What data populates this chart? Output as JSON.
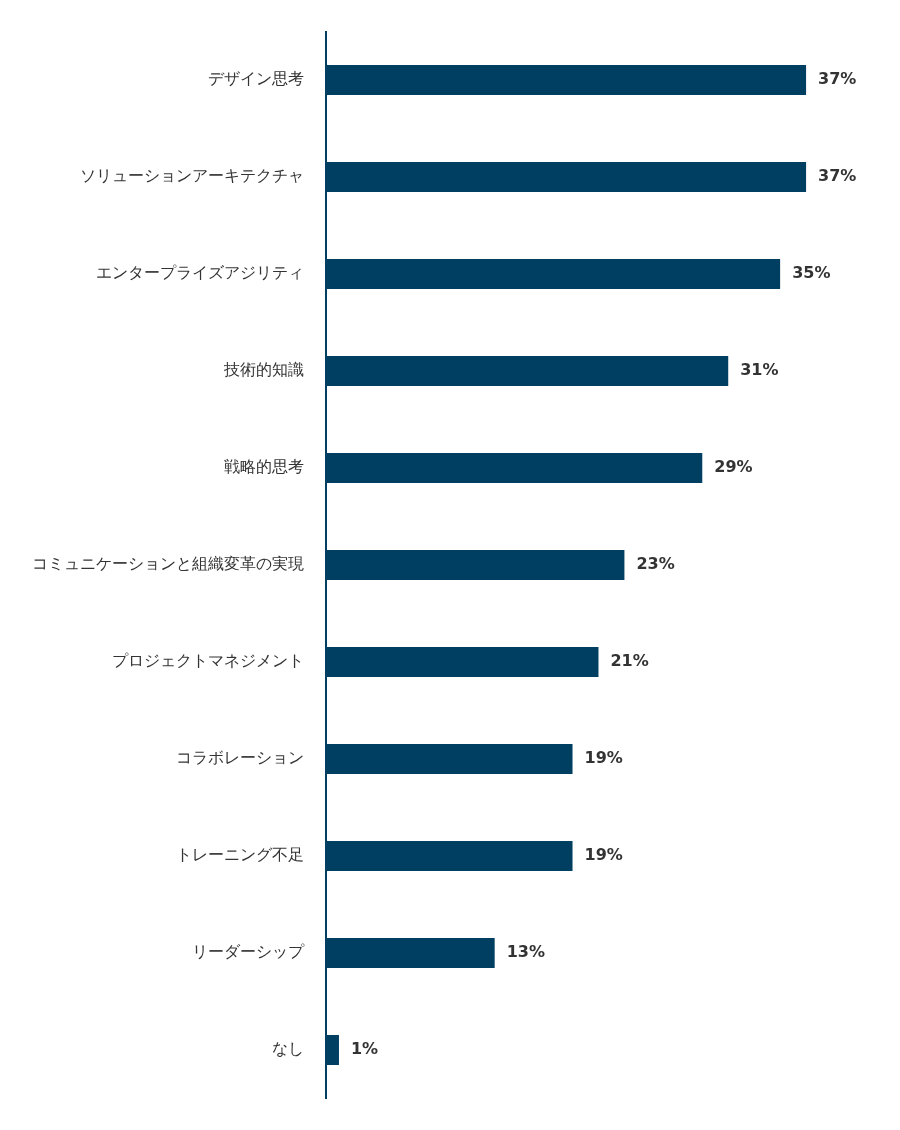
{
  "chart_data": {
    "type": "bar",
    "orientation": "horizontal",
    "categories": [
      "デザイン思考",
      "ソリューションアーキテクチャ",
      "エンタープライズアジリティ",
      "技術的知識",
      "戦略的思考",
      "コミュニケーションと組織変革の実現",
      "プロジェクトマネジメント",
      "コラボレーション",
      "トレーニング不足",
      "リーダーシップ",
      "なし"
    ],
    "values": [
      37,
      37,
      35,
      31,
      29,
      23,
      21,
      19,
      19,
      13,
      1
    ],
    "value_labels": [
      "37%",
      "37%",
      "35%",
      "31%",
      "29%",
      "23%",
      "21%",
      "19%",
      "19%",
      "13%",
      "1%"
    ],
    "color": "#003f62",
    "grid": false,
    "legend": false
  }
}
